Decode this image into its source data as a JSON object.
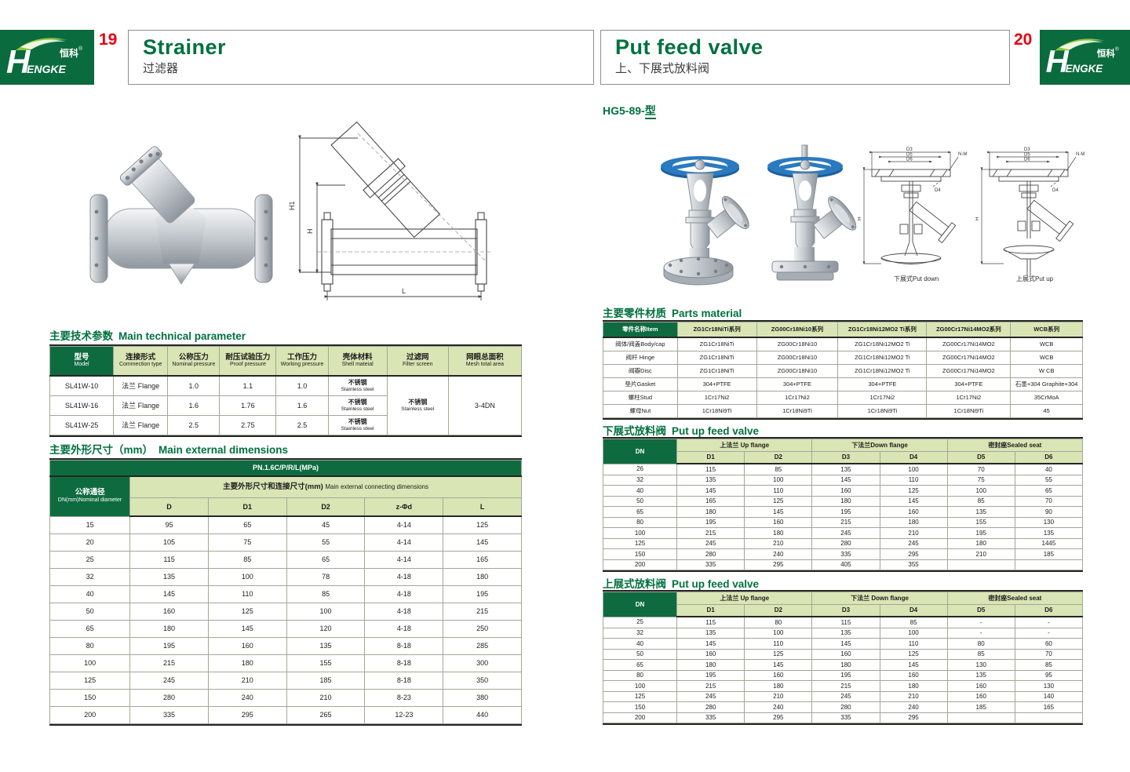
{
  "colors": {
    "brand_green": "#0a6b3e",
    "table_header_green": "#0e6b40",
    "table_cell_green": "#d9e5b4",
    "accent_red": "#e60012",
    "title_green": "#00713f",
    "handwheel_blue": "#2a7abf"
  },
  "brand": {
    "h": "H",
    "engke": "ENGKE",
    "zh": "恒科",
    "reg": "®"
  },
  "header": {
    "left_page": "19",
    "right_page": "20",
    "left_title_en": "Strainer",
    "left_title_zh": "过滤器",
    "right_title_en": "Put feed valve",
    "right_title_zh": "上、下展式放料阀"
  },
  "left": {
    "drawing_labels": {
      "h1": "H1",
      "h": "H",
      "l": "L"
    },
    "tech": {
      "title_zh": "主要技术参数",
      "title_en": "Main technical parameter",
      "headers": [
        {
          "zh": "型号",
          "en": "Model"
        },
        {
          "zh": "连接形式",
          "en": "Commection type"
        },
        {
          "zh": "公称压力",
          "en": "Nominal pressure"
        },
        {
          "zh": "耐压试验压力",
          "en": "Proof pressure"
        },
        {
          "zh": "工作压力",
          "en": "Working pressure"
        },
        {
          "zh": "壳体材料",
          "en": "Shell mateial"
        },
        {
          "zh": "过滤网",
          "en": "Filter screen"
        },
        {
          "zh": "网眼总面积",
          "en": "Mesh total area"
        }
      ],
      "rows": [
        {
          "model": "SL41W-10",
          "conn": "法兰 Flange",
          "nominal": "1.0",
          "proof": "1.1",
          "working": "1.0",
          "shell_zh": "不锈钢",
          "shell_en": "Stainless steel"
        },
        {
          "model": "SL41W-16",
          "conn": "法兰 Flange",
          "nominal": "1.6",
          "proof": "1.76",
          "working": "1.6",
          "shell_zh": "不锈钢",
          "shell_en": "Stainless steel"
        },
        {
          "model": "SL41W-25",
          "conn": "法兰 Flange",
          "nominal": "2.5",
          "proof": "2.75",
          "working": "2.5",
          "shell_zh": "不锈钢",
          "shell_en": "Stainless steel"
        }
      ],
      "filter_merged_zh": "不锈钢",
      "filter_merged_en": "Stainless steel",
      "mesh_merged": "3-4DN"
    },
    "dims": {
      "title_zh": "主要外形尺寸（mm）",
      "title_en": "Main external dimensions",
      "pn": "PN.1.6C/P/R/L(MPa)",
      "dn_zh": "公称通径",
      "dn_en": "DN(mm)Nominal diameter",
      "group_zh": "主要外形尺寸和连接尺寸(mm)",
      "group_en": "Main external connecting dimensions",
      "cols": [
        "D",
        "D1",
        "D2",
        "z-Φd",
        "L"
      ],
      "rows": [
        [
          "15",
          "95",
          "65",
          "45",
          "4-14",
          "125"
        ],
        [
          "20",
          "105",
          "75",
          "55",
          "4-14",
          "145"
        ],
        [
          "25",
          "115",
          "85",
          "65",
          "4-14",
          "165"
        ],
        [
          "32",
          "135",
          "100",
          "78",
          "4-18",
          "180"
        ],
        [
          "40",
          "145",
          "110",
          "85",
          "4-18",
          "195"
        ],
        [
          "50",
          "160",
          "125",
          "100",
          "4-18",
          "215"
        ],
        [
          "65",
          "180",
          "145",
          "120",
          "4-18",
          "250"
        ],
        [
          "80",
          "195",
          "160",
          "135",
          "8-18",
          "285"
        ],
        [
          "100",
          "215",
          "180",
          "155",
          "8-18",
          "300"
        ],
        [
          "125",
          "245",
          "210",
          "185",
          "8-18",
          "350"
        ],
        [
          "150",
          "280",
          "240",
          "210",
          "8-23",
          "380"
        ],
        [
          "200",
          "335",
          "295",
          "265",
          "12-23",
          "440"
        ]
      ]
    }
  },
  "right": {
    "model_code": "HG5-89-",
    "model_suffix": "型",
    "drawing_captions": [
      "下展式Put down",
      "上展式Put up"
    ],
    "drawing_labels": {
      "d3": "D3",
      "d5": "D5",
      "d6": "D6",
      "d4": "D4",
      "nm": "N-M",
      "h": "H"
    },
    "parts": {
      "title_zh": "主要零件材质",
      "title_en": "Parts material",
      "headers": [
        "零件名称Item",
        "ZG1Cr18NiTi系列",
        "ZG00Cr18Ni10系列",
        "ZG1Cr18Ni12MO2 Ti系列",
        "ZG00Cr17Ni14MO2系列",
        "WCB系列"
      ],
      "rows": [
        [
          "阀体/阀盖Body/cap",
          "ZG1Cr18NiTi",
          "ZG00Cr18Ni10",
          "ZG1Cr18Ni12MO2 Ti",
          "ZG00Cr17Ni14MO2",
          "WCB"
        ],
        [
          "阀杆 Hinge",
          "ZG1Cr18NiTi",
          "ZG00Cr18Ni10",
          "ZG1Cr18Ni12MO2 Ti",
          "ZG00Cr17Ni14MO2",
          "WCB"
        ],
        [
          "阀瓣Disc",
          "ZG1Cr18NiTi",
          "ZG00Cr18Ni10",
          "ZG1Cr18Ni12MO2 Ti",
          "ZG00Cr17Ni14MO2",
          "W CB"
        ],
        [
          "垫片Gasket",
          "304+PTFE",
          "304+PTFE",
          "304+PTFE",
          "304+PTFE",
          "石墨+304 Graphite+304"
        ],
        [
          "螺柱Stud",
          "1Cr17Ni2",
          "1Cr17Ni2",
          "1Cr17Ni2",
          "1Cr17Ni2",
          "35CrMoA"
        ],
        [
          "螺母Nut",
          "1Cr18Ni9Ti",
          "1Cr18Ni9Ti",
          "1Cr18Ni9Ti",
          "1Cr18Ni9Ti",
          "45"
        ]
      ]
    },
    "down": {
      "title_zh": "下展式放料阀",
      "title_en": "Put up feed valve",
      "col_dn": "DN",
      "groups": [
        "上法兰 Up flange",
        "下法兰Down flange",
        "密封座Sealed seat"
      ],
      "cols": [
        "D1",
        "D2",
        "D3",
        "D4",
        "D5",
        "D6"
      ],
      "rows": [
        [
          "26",
          "115",
          "85",
          "135",
          "100",
          "70",
          "40"
        ],
        [
          "32",
          "135",
          "100",
          "145",
          "110",
          "75",
          "55"
        ],
        [
          "40",
          "145",
          "110",
          "160",
          "125",
          "100",
          "65"
        ],
        [
          "50",
          "165",
          "125",
          "180",
          "145",
          "85",
          "70"
        ],
        [
          "65",
          "180",
          "145",
          "195",
          "160",
          "135",
          "90"
        ],
        [
          "80",
          "195",
          "160",
          "215",
          "180",
          "155",
          "130"
        ],
        [
          "100",
          "215",
          "180",
          "245",
          "210",
          "195",
          "135"
        ],
        [
          "125",
          "245",
          "210",
          "280",
          "245",
          "180",
          "1445"
        ],
        [
          "150",
          "280",
          "240",
          "335",
          "295",
          "210",
          "185"
        ],
        [
          "200",
          "335",
          "295",
          "405",
          "355",
          "",
          ""
        ]
      ]
    },
    "up": {
      "title_zh": "上展式放料阀",
      "title_en": "Put up feed valve",
      "col_dn": "DN",
      "groups": [
        "上法兰 Up flange",
        "下法兰 Down flange",
        "密封座Sealed seat"
      ],
      "cols": [
        "D1",
        "D2",
        "D3",
        "D4",
        "D5",
        "D6"
      ],
      "rows": [
        [
          "25",
          "115",
          "80",
          "115",
          "85",
          "-",
          "-"
        ],
        [
          "32",
          "135",
          "100",
          "135",
          "100",
          "-",
          "-"
        ],
        [
          "40",
          "145",
          "110",
          "145",
          "110",
          "80",
          "60"
        ],
        [
          "50",
          "160",
          "125",
          "160",
          "125",
          "85",
          "70"
        ],
        [
          "65",
          "180",
          "145",
          "180",
          "145",
          "130",
          "85"
        ],
        [
          "80",
          "195",
          "160",
          "195",
          "160",
          "135",
          "95"
        ],
        [
          "100",
          "215",
          "180",
          "215",
          "180",
          "160",
          "130"
        ],
        [
          "125",
          "245",
          "210",
          "245",
          "210",
          "160",
          "140"
        ],
        [
          "150",
          "280",
          "240",
          "280",
          "240",
          "185",
          "165"
        ],
        [
          "200",
          "335",
          "295",
          "335",
          "295",
          "",
          ""
        ]
      ]
    }
  }
}
